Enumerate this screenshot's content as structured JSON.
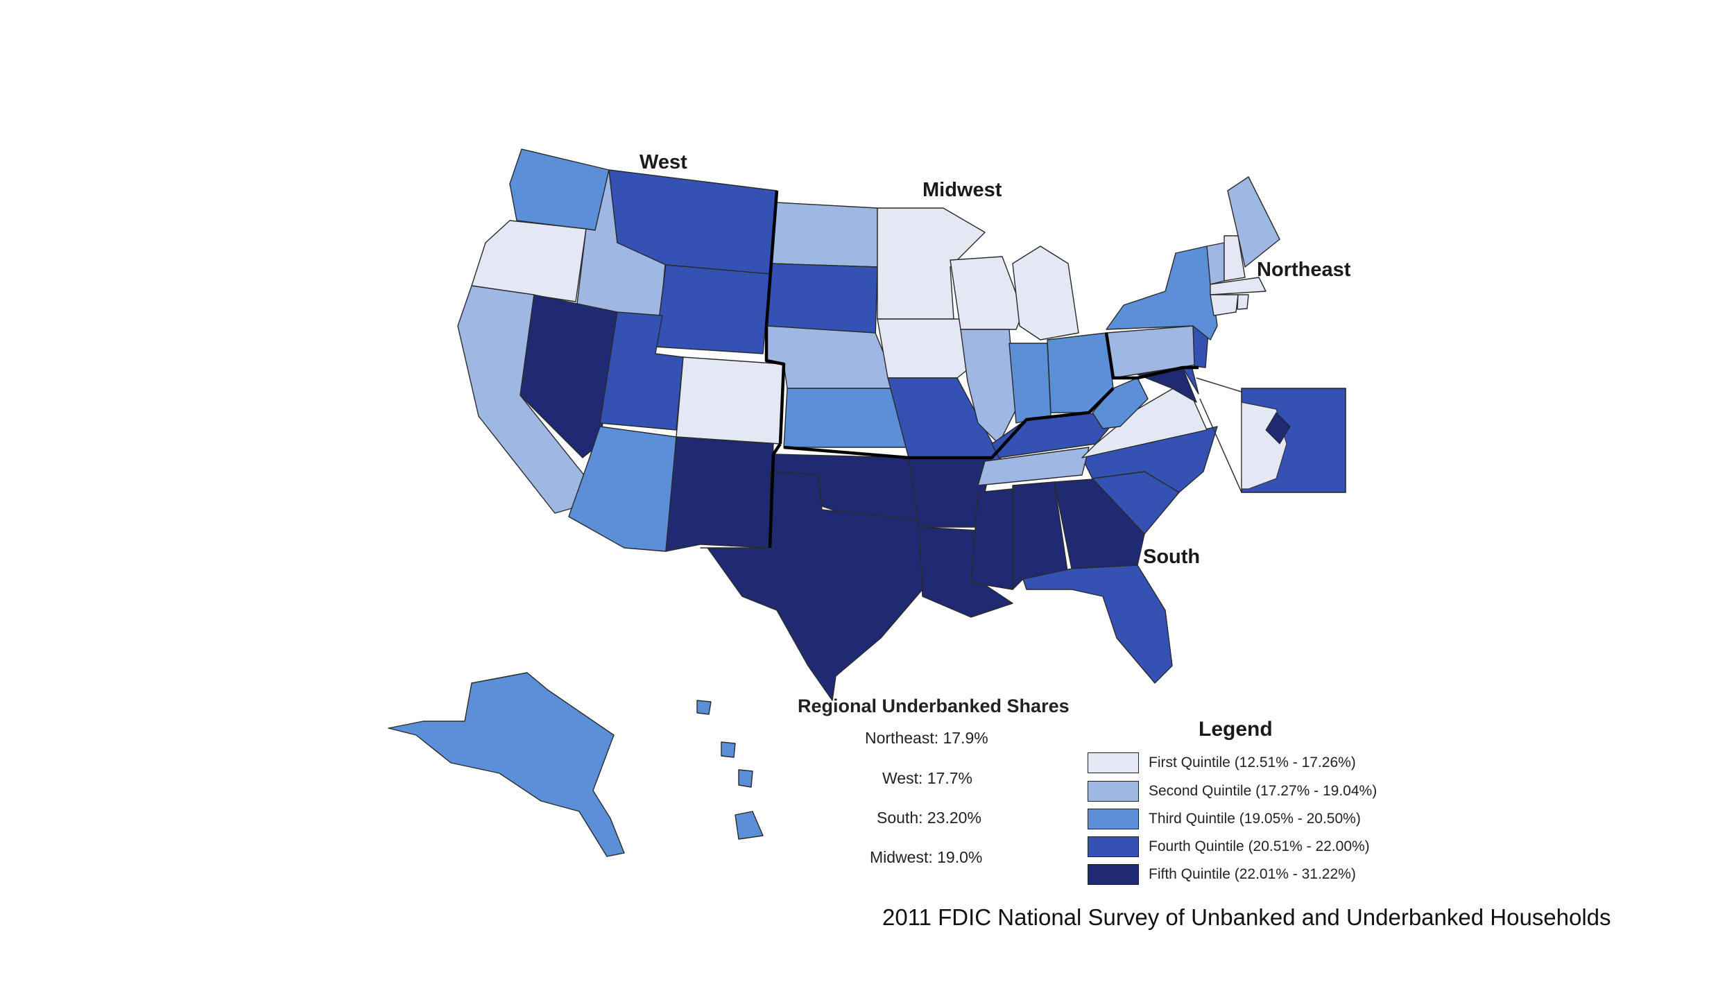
{
  "region_labels": {
    "west": "West",
    "midwest": "Midwest",
    "northeast": "Northeast",
    "south": "South"
  },
  "shares": {
    "title": "Regional Underbanked Shares",
    "rows": [
      "Northeast:  17.9%",
      "West:  17.7%",
      "South:  23.20%",
      "Midwest:  19.0%"
    ]
  },
  "legend": {
    "title": "Legend",
    "items": [
      {
        "label": "First Quintile (12.51% - 17.26%)",
        "color": "#e4e8f4"
      },
      {
        "label": "Second Quintile (17.27% - 19.04%)",
        "color": "#9fb8e3"
      },
      {
        "label": "Third Quintile (19.05% - 20.50%)",
        "color": "#5b8fd8"
      },
      {
        "label": "Fourth Quintile (20.51% - 22.00%)",
        "color": "#3452b4"
      },
      {
        "label": "Fifth Quintile (22.01% - 31.22%)",
        "color": "#1f2a72"
      }
    ]
  },
  "source": "2011 FDIC National Survey of Unbanked and Underbanked Households"
}
